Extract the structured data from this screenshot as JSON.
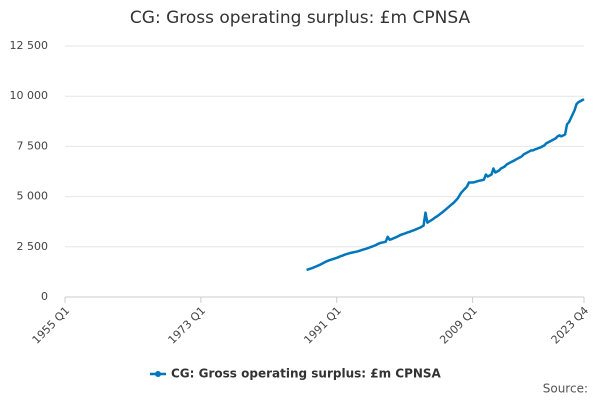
{
  "chart_data": {
    "type": "line",
    "title": "CG: Gross operating surplus: £m CPNSA",
    "categories": [
      "1955 Q1",
      null,
      null,
      null,
      null,
      null,
      null,
      null,
      null,
      null,
      null,
      null,
      null,
      null,
      null,
      null,
      null,
      null,
      null,
      null,
      null,
      null,
      null,
      null,
      null,
      null,
      null,
      null,
      null,
      null,
      null,
      null,
      null,
      null,
      null,
      null,
      null,
      null,
      null,
      null,
      null,
      null,
      null,
      null,
      null,
      null,
      null,
      null,
      null,
      null,
      null,
      null,
      null,
      null,
      null,
      null,
      null,
      null,
      null,
      null,
      null,
      null,
      null,
      null,
      null,
      null,
      null,
      null,
      null,
      null,
      null,
      null,
      "1973 Q1",
      null,
      null,
      null,
      null,
      null,
      null,
      null,
      null,
      null,
      null,
      null,
      null,
      null,
      null,
      null,
      null,
      null,
      null,
      null,
      null,
      null,
      null,
      null,
      null,
      null,
      null,
      null,
      null,
      null,
      null,
      null,
      null,
      null,
      null,
      null,
      null,
      null,
      null,
      null,
      null,
      null,
      null,
      null,
      null,
      null,
      null,
      null,
      null,
      null,
      null,
      null,
      null,
      null,
      null,
      null,
      null,
      null,
      null,
      null,
      null,
      null,
      null,
      null,
      null,
      null,
      null,
      null,
      null,
      null,
      null,
      null,
      "1991 Q1",
      null,
      null,
      null,
      null,
      null,
      null,
      null,
      null,
      null,
      null,
      null,
      null,
      null,
      null,
      null,
      null,
      null,
      null,
      null,
      null,
      null,
      null,
      null,
      null,
      null,
      null,
      null,
      null,
      null,
      null,
      null,
      null,
      null,
      null,
      null,
      null,
      null,
      null,
      null,
      null,
      null,
      null,
      null,
      null,
      null,
      null,
      null,
      null,
      null,
      null,
      null,
      null,
      null,
      null,
      null,
      null,
      null,
      null,
      null,
      null,
      null,
      null,
      null,
      null,
      null,
      null,
      null,
      null,
      null,
      null,
      null,
      "2009 Q1",
      null,
      null,
      null,
      null,
      null,
      null,
      null,
      null,
      null,
      null,
      null,
      null,
      null,
      null,
      null,
      null,
      null,
      null,
      null,
      null,
      null,
      null,
      null,
      null,
      null,
      null,
      null,
      null,
      null,
      null,
      null,
      null,
      null,
      null,
      null,
      null,
      null,
      null,
      null,
      null,
      null,
      null,
      null,
      null,
      null,
      null,
      null,
      null,
      null,
      null,
      null,
      null,
      null,
      null,
      null,
      null,
      null,
      null,
      "2023 Q4"
    ],
    "series": [
      {
        "name": "CG: Gross operating surplus: £m CPNSA",
        "color": "#0077bb",
        "values": [
          null,
          null,
          null,
          null,
          null,
          null,
          null,
          null,
          null,
          null,
          null,
          null,
          null,
          null,
          null,
          null,
          null,
          null,
          null,
          null,
          null,
          null,
          null,
          null,
          null,
          null,
          null,
          null,
          null,
          null,
          null,
          null,
          null,
          null,
          null,
          null,
          null,
          null,
          null,
          null,
          null,
          null,
          null,
          null,
          null,
          null,
          null,
          null,
          null,
          null,
          null,
          null,
          null,
          null,
          null,
          null,
          null,
          null,
          null,
          null,
          null,
          null,
          null,
          null,
          null,
          null,
          null,
          null,
          null,
          null,
          null,
          null,
          null,
          null,
          null,
          null,
          null,
          null,
          null,
          null,
          null,
          null,
          null,
          null,
          null,
          null,
          null,
          null,
          null,
          null,
          null,
          null,
          null,
          null,
          null,
          null,
          null,
          null,
          null,
          null,
          null,
          null,
          null,
          null,
          null,
          null,
          null,
          null,
          null,
          null,
          null,
          null,
          null,
          null,
          null,
          null,
          null,
          null,
          null,
          null,
          null,
          null,
          null,
          null,
          null,
          null,
          null,
          null,
          1350,
          1380,
          1410,
          1440,
          1480,
          1520,
          1560,
          1600,
          1650,
          1700,
          1750,
          1790,
          1830,
          1860,
          1890,
          1920,
          1950,
          1990,
          2030,
          2060,
          2100,
          2130,
          2160,
          2190,
          2210,
          2230,
          2250,
          2270,
          2300,
          2330,
          2360,
          2390,
          2420,
          2450,
          2490,
          2520,
          2560,
          2600,
          2650,
          2690,
          2710,
          2730,
          2760,
          3000,
          2850,
          2880,
          2920,
          2960,
          3000,
          3050,
          3100,
          3130,
          3160,
          3200,
          3230,
          3260,
          3300,
          3330,
          3370,
          3410,
          3450,
          3500,
          3560,
          4200,
          3700,
          3760,
          3820,
          3880,
          3950,
          4010,
          4080,
          4150,
          4220,
          4300,
          4380,
          4460,
          4540,
          4620,
          4700,
          4800,
          4900,
          5050,
          5200,
          5300,
          5400,
          5500,
          5700,
          5700,
          5700,
          5720,
          5750,
          5780,
          5800,
          5820,
          5850,
          6100,
          6000,
          6050,
          6100,
          6400,
          6200,
          6250,
          6300,
          6400,
          6450,
          6500,
          6600,
          6650,
          6700,
          6750,
          6800,
          6850,
          6900,
          6950,
          7000,
          7100,
          7150,
          7200,
          7250,
          7300,
          7300,
          7350,
          7380,
          7420,
          7450,
          7500,
          7550,
          7650,
          7700,
          7750,
          7800,
          7850,
          7900,
          8000,
          8050,
          8000,
          8050,
          8100,
          8600,
          8700,
          8900,
          9100,
          9300,
          9600,
          9700,
          9750,
          9800,
          9850
        ]
      }
    ],
    "ylim": [
      0,
      12500
    ],
    "yticks": [
      0,
      {
        "value": 2500,
        "label": "2 500"
      },
      {
        "value": 5000,
        "label": "5 000"
      },
      {
        "value": 7500,
        "label": "7 500"
      },
      {
        "value": 10000,
        "label": "10 000"
      },
      {
        "value": 12500,
        "label": "12 500"
      }
    ],
    "grid": true,
    "legend": "bottom",
    "source_label": "Source:"
  }
}
